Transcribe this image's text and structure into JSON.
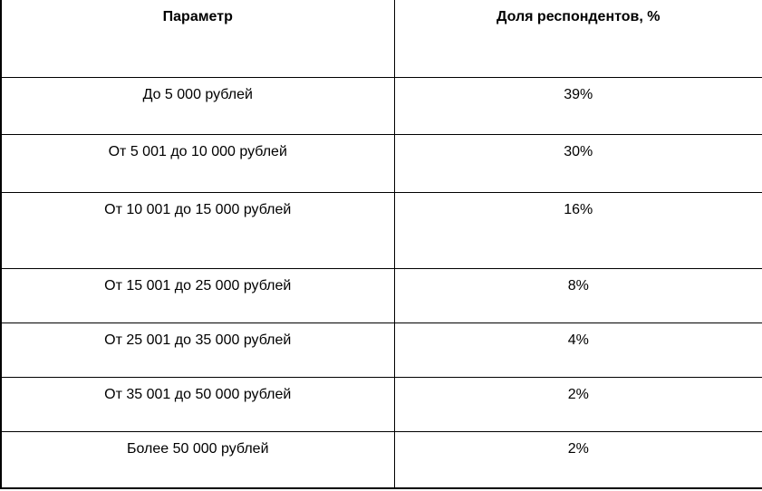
{
  "colors": {
    "background": "#ffffff",
    "border": "#000000",
    "text": "#000000"
  },
  "table": {
    "headers": [
      "Параметр",
      "Доля респондентов, %"
    ],
    "rows": [
      {
        "parameter": "До 5 000 рублей",
        "share": "39%"
      },
      {
        "parameter": "От 5 001 до 10 000 рублей",
        "share": "30%"
      },
      {
        "parameter": "От 10 001 до 15 000 рублей",
        "share": "16%"
      },
      {
        "parameter": "От 15 001 до 25 000 рублей",
        "share": "8%"
      },
      {
        "parameter": "От 25 001 до 35 000 рублей",
        "share": "4%"
      },
      {
        "parameter": "От 35 001 до 50 000 рублей",
        "share": "2%"
      },
      {
        "parameter": "Более 50 000 рублей",
        "share": "2%"
      }
    ]
  },
  "chart_data": {
    "type": "table",
    "title": "",
    "columns": [
      "Параметр",
      "Доля респондентов, %"
    ],
    "categories": [
      "До 5 000 рублей",
      "От 5 001 до 10 000 рублей",
      "От 10 001 до 15 000 рублей",
      "От 15 001 до 25 000 рублей",
      "От 25 001 до 35 000 рублей",
      "От 35 001 до 50 000 рублей",
      "Более 50 000 рублей"
    ],
    "values": [
      39,
      30,
      16,
      8,
      4,
      2,
      2
    ],
    "value_unit": "%"
  }
}
